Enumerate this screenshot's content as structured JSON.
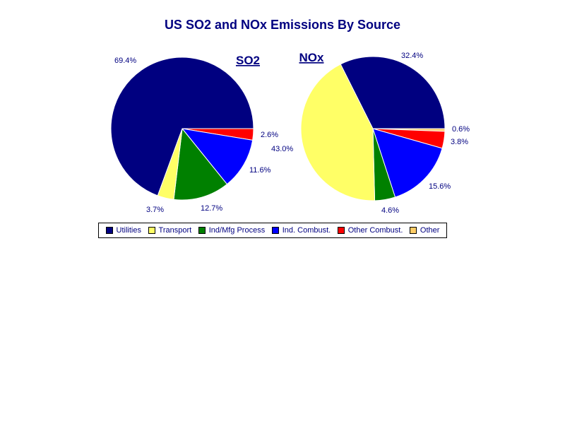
{
  "chart_data": {
    "type": "pie",
    "title": "US SO2 and NOx Emissions By Source",
    "categories": [
      "Utilities",
      "Transport",
      "Ind/Mfg Process",
      "Ind. Combust.",
      "Other Combust.",
      "Other"
    ],
    "colors": [
      "#000080",
      "#ffff66",
      "#008000",
      "#0000ff",
      "#ff0000",
      "#ffcc66"
    ],
    "legend_position": "bottom",
    "series": [
      {
        "name": "SO2",
        "values": [
          69.4,
          3.7,
          12.7,
          11.6,
          2.6,
          0.0
        ],
        "labels": [
          "69.4%",
          "3.7%",
          "12.7%",
          "11.6%",
          "2.6%",
          ""
        ]
      },
      {
        "name": "NOx",
        "values": [
          32.4,
          43.0,
          4.6,
          15.6,
          3.8,
          0.6
        ],
        "labels": [
          "32.4%",
          "43.0%",
          "4.6%",
          "15.6%",
          "3.8%",
          "0.6%"
        ]
      }
    ]
  }
}
